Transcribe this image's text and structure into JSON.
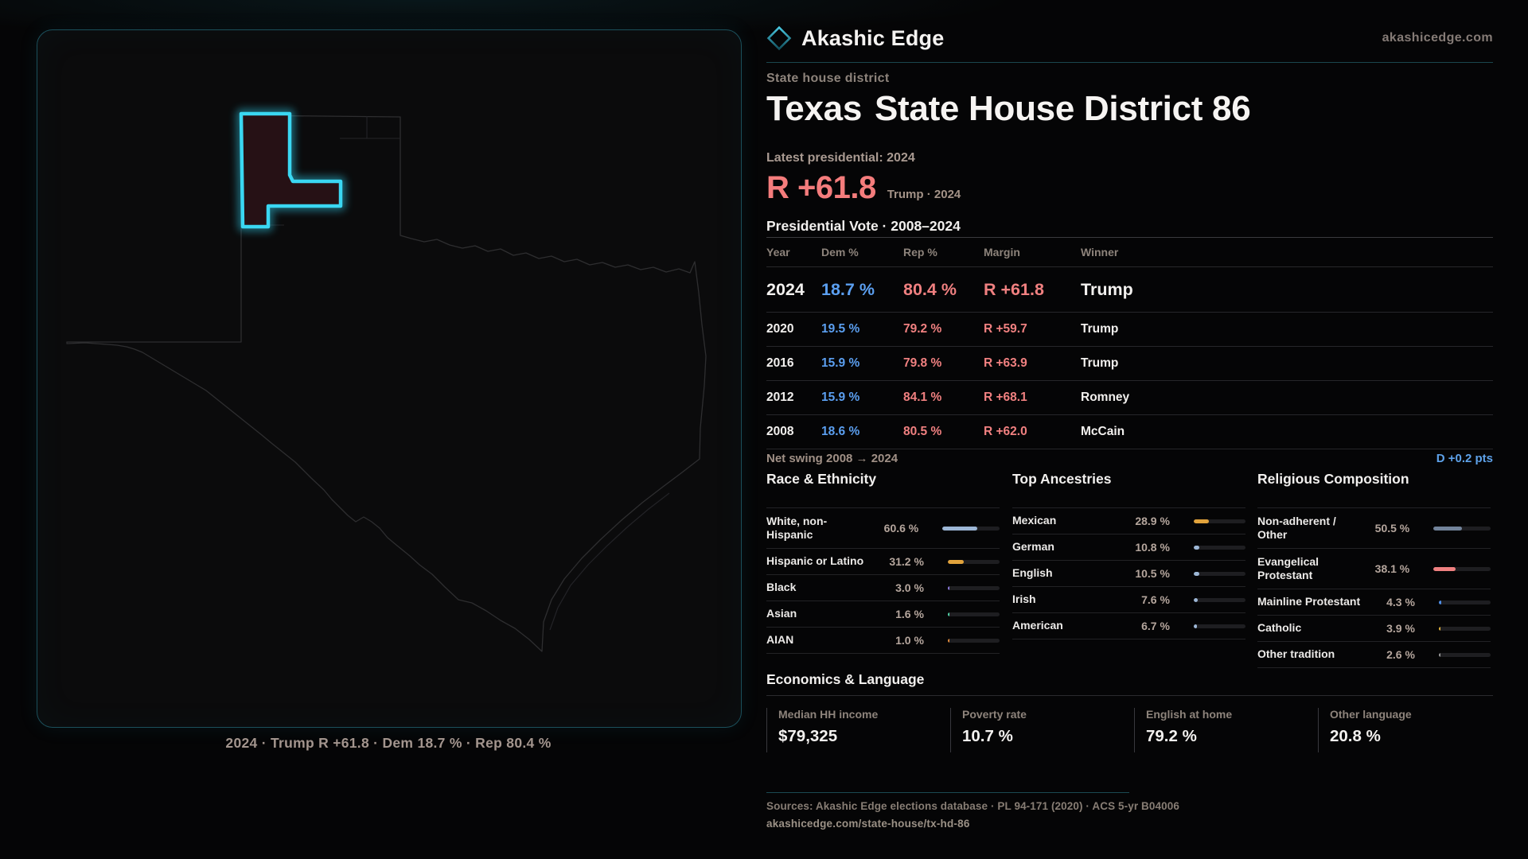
{
  "brand": {
    "name": "Akashic Edge",
    "site": "akashicedge.com"
  },
  "header": {
    "kicker": "State house district",
    "title_state": "Texas",
    "title_rest": "State House District 86",
    "latest_label": "Latest presidential: 2024",
    "margin_value": "R +61.8",
    "margin_context": "Trump · 2024"
  },
  "map": {
    "caption": "2024 · Trump R +61.8 · Dem 18.7 % · Rep 80.4 %",
    "district_color": "#3ad7f2"
  },
  "table": {
    "title": "Presidential Vote · 2008–2024",
    "columns": [
      "Year",
      "Dem %",
      "Rep %",
      "Margin",
      "Winner"
    ],
    "rows": [
      {
        "year": "2024",
        "dem": "18.7 %",
        "rep": "80.4 %",
        "margin": "R +61.8",
        "winner": "Trump",
        "emphasis": true
      },
      {
        "year": "2020",
        "dem": "19.5 %",
        "rep": "79.2 %",
        "margin": "R +59.7",
        "winner": "Trump"
      },
      {
        "year": "2016",
        "dem": "15.9 %",
        "rep": "79.8 %",
        "margin": "R +63.9",
        "winner": "Trump"
      },
      {
        "year": "2012",
        "dem": "15.9 %",
        "rep": "84.1 %",
        "margin": "R +68.1",
        "winner": "Romney"
      },
      {
        "year": "2008",
        "dem": "18.6 %",
        "rep": "80.5 %",
        "margin": "R +62.0",
        "winner": "McCain"
      }
    ]
  },
  "net_swing": {
    "label": "Net swing 2008 → 2024",
    "value": "D +0.2 pts"
  },
  "demographics": {
    "race": {
      "title": "Race & Ethnicity",
      "items": [
        {
          "label": "White, non-Hispanic",
          "value": "60.6 %",
          "pct": 60.6,
          "color": "#9db7d6",
          "tall": true
        },
        {
          "label": "Hispanic or Latino",
          "value": "31.2 %",
          "pct": 31.2,
          "color": "#e2a33c"
        },
        {
          "label": "Black",
          "value": "3.0 %",
          "pct": 3.0,
          "color": "#8d7be0"
        },
        {
          "label": "Asian",
          "value": "1.6 %",
          "pct": 1.6,
          "color": "#52d3a8"
        },
        {
          "label": "AIAN",
          "value": "1.0 %",
          "pct": 1.0,
          "color": "#e28b3c"
        }
      ]
    },
    "ancestries": {
      "title": "Top Ancestries",
      "items": [
        {
          "label": "Mexican",
          "value": "28.9 %",
          "pct": 28.9,
          "color": "#e2a33c"
        },
        {
          "label": "German",
          "value": "10.8 %",
          "pct": 10.8,
          "color": "#9db7d6"
        },
        {
          "label": "English",
          "value": "10.5 %",
          "pct": 10.5,
          "color": "#9db7d6"
        },
        {
          "label": "Irish",
          "value": "7.6 %",
          "pct": 7.6,
          "color": "#9db7d6"
        },
        {
          "label": "American",
          "value": "6.7 %",
          "pct": 6.7,
          "color": "#9db7d6"
        }
      ]
    },
    "religion": {
      "title": "Religious Composition",
      "items": [
        {
          "label": "Non-adherent / Other",
          "value": "50.5 %",
          "pct": 50.5,
          "color": "#72839a",
          "tall": true
        },
        {
          "label": "Evangelical Protestant",
          "value": "38.1 %",
          "pct": 38.1,
          "color": "#ef8080",
          "tall": true
        },
        {
          "label": "Mainline Protestant",
          "value": "4.3 %",
          "pct": 4.3,
          "color": "#4f8fe8"
        },
        {
          "label": "Catholic",
          "value": "3.9 %",
          "pct": 3.9,
          "color": "#e2b33c"
        },
        {
          "label": "Other tradition",
          "value": "2.6 %",
          "pct": 2.6,
          "color": "#9a9a9a"
        }
      ]
    }
  },
  "economics": {
    "title": "Economics & Language",
    "stats": [
      {
        "label": "Median HH income",
        "value": "$79,325"
      },
      {
        "label": "Poverty rate",
        "value": "10.7 %"
      },
      {
        "label": "English at home",
        "value": "79.2 %"
      },
      {
        "label": "Other language",
        "value": "20.8 %"
      }
    ]
  },
  "footer": {
    "sources": "Sources: Akashic Edge elections database · PL 94-171 (2020) · ACS 5-yr B04006",
    "link": "akashicedge.com/state-house/tx-hd-86"
  },
  "colors": {
    "dem": "#5b9ff0",
    "rep": "#f08080",
    "swing": "#5ea2ea"
  }
}
